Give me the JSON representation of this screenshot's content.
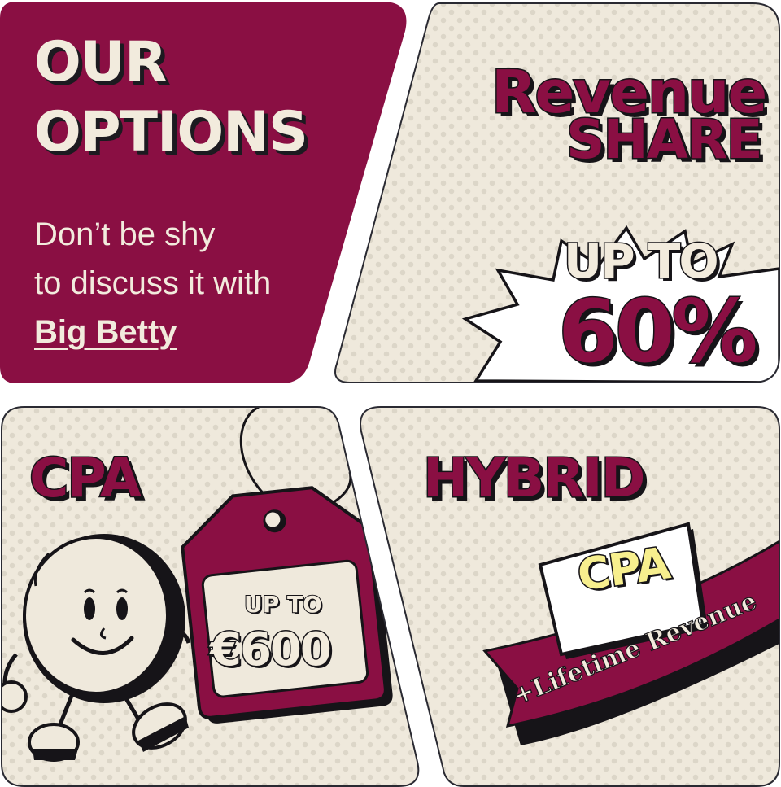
{
  "intro": {
    "title_line1": "OUR",
    "title_line2": "OPTIONS",
    "subtitle_line1": "Don’t be shy",
    "subtitle_line2": "to discuss it with",
    "link_label": "Big Betty"
  },
  "revenue_share": {
    "title_line1": "Revenue",
    "title_line2": "SHARE",
    "burst_prefix": "UP TO",
    "burst_value": "60%"
  },
  "cpa": {
    "title": "CPA",
    "tag_prefix": "UP TO",
    "tag_value": "€600"
  },
  "hybrid": {
    "title": "HYBRID",
    "badge_label": "CPA",
    "ribbon_label": "+Lifetime Revenue"
  },
  "colors": {
    "brand_burgundy": "#8a0f43",
    "cream": "#f2ebdd",
    "ink": "#161418",
    "highlight_yellow": "#f7ef8e"
  },
  "icons": [
    "coin-mascot-icon",
    "price-tag-icon",
    "comic-burst-icon"
  ]
}
